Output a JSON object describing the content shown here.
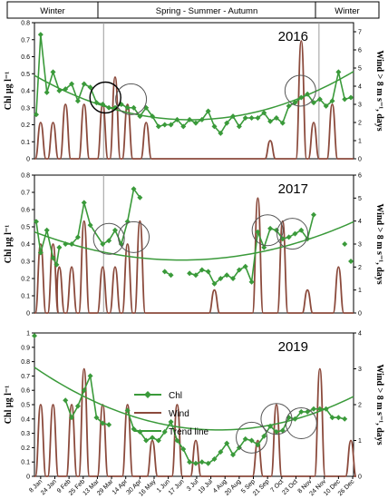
{
  "seasons": [
    "Winter",
    "Spring - Summer - Autumn",
    "Winter"
  ],
  "legend": [
    "Chl",
    "Wind",
    "Trend line"
  ],
  "colors": {
    "chl": "#3a9a3a",
    "wind": "#8b4a3c",
    "trend": "#3a9a3a",
    "divider": "#9a9a9a",
    "circle": "#555555"
  },
  "chart_data": [
    {
      "type": "line",
      "year": "2016",
      "y_left_label": "Chl µg l⁻¹",
      "y_right_label": "Wind > 8 m s⁻¹, days",
      "y_left_ticks": [
        "0",
        "0.1",
        "0.2",
        "0.3",
        "0.4",
        "0.5",
        "0.6",
        "0.7",
        "0.8"
      ],
      "y_right_ticks": [
        "0",
        "1",
        "2",
        "3",
        "4",
        "5",
        "6",
        "7"
      ],
      "ylim_left": [
        0,
        0.8
      ],
      "ylim_right": [
        0,
        7.5
      ],
      "chl": [
        [
          2,
          0.26
        ],
        [
          7,
          0.73
        ],
        [
          14,
          0.39
        ],
        [
          21,
          0.51
        ],
        [
          28,
          0.4
        ],
        [
          35,
          0.41
        ],
        [
          42,
          0.44
        ],
        [
          49,
          0.34
        ],
        [
          56,
          0.44
        ],
        [
          63,
          0.42
        ],
        [
          70,
          0.33
        ],
        [
          77,
          0.32
        ],
        [
          84,
          0.3
        ],
        [
          91,
          0.3
        ],
        [
          98,
          0.32
        ],
        [
          105,
          0.3
        ],
        [
          112,
          0.3
        ],
        [
          119,
          0.25
        ],
        [
          126,
          0.3
        ],
        [
          133,
          0.25
        ],
        [
          140,
          0.19
        ],
        [
          147,
          0.2
        ],
        [
          154,
          0.2
        ],
        [
          161,
          0.23
        ],
        [
          168,
          0.19
        ],
        [
          175,
          0.23
        ],
        [
          182,
          0.21
        ],
        [
          189,
          0.23
        ],
        [
          196,
          0.28
        ],
        [
          203,
          0.19
        ],
        [
          210,
          0.15
        ],
        [
          217,
          0.21
        ],
        [
          224,
          0.25
        ],
        [
          231,
          0.19
        ],
        [
          238,
          0.24
        ],
        [
          245,
          0.24
        ],
        [
          252,
          0.24
        ],
        [
          259,
          0.27
        ],
        [
          266,
          0.22
        ],
        [
          273,
          0.24
        ],
        [
          280,
          0.21
        ],
        [
          287,
          0.31
        ],
        [
          294,
          0.33
        ],
        [
          301,
          0.36
        ],
        [
          308,
          0.38
        ],
        [
          315,
          0.33
        ],
        [
          322,
          0.35
        ],
        [
          329,
          0.31
        ],
        [
          336,
          0.34
        ],
        [
          343,
          0.51
        ],
        [
          350,
          0.35
        ],
        [
          357,
          0.36
        ]
      ],
      "chl_gaps": [],
      "wind_peaks": [
        [
          7,
          2
        ],
        [
          21,
          2
        ],
        [
          35,
          3
        ],
        [
          56,
          3
        ],
        [
          77,
          3
        ],
        [
          91,
          4.5
        ],
        [
          105,
          3
        ],
        [
          126,
          2
        ],
        [
          266,
          1
        ],
        [
          301,
          6.5
        ],
        [
          315,
          2
        ],
        [
          336,
          3
        ]
      ],
      "trend": [
        0.49,
        -0.00296,
        8.4e-06
      ],
      "circles": [
        [
          80,
          0.36
        ],
        [
          109,
          0.35
        ],
        [
          300,
          0.4
        ]
      ],
      "dividers": [
        78,
        321
      ]
    },
    {
      "type": "line",
      "year": "2017",
      "y_left_label": "Chl µg l⁻¹",
      "y_right_label": "Wind > 8 m s⁻¹, days",
      "y_left_ticks": [
        "0",
        "0.1",
        "0.2",
        "0.3",
        "0.4",
        "0.5",
        "0.6",
        "0.7",
        "0.8"
      ],
      "y_right_ticks": [
        "0",
        "1",
        "2",
        "3",
        "4",
        "5",
        "6"
      ],
      "ylim_left": [
        0,
        0.8
      ],
      "ylim_right": [
        0,
        6
      ],
      "chl": [
        [
          2,
          0.53
        ],
        [
          7,
          0.35
        ],
        [
          14,
          0.48
        ],
        [
          21,
          0.32
        ],
        [
          25,
          0.28
        ],
        [
          28,
          0.38
        ],
        [
          35,
          0.4
        ],
        [
          42,
          0.4
        ],
        [
          49,
          0.44
        ],
        [
          56,
          0.64
        ],
        [
          63,
          0.51
        ],
        [
          77,
          0.4
        ],
        [
          84,
          0.42
        ],
        [
          91,
          0.48
        ],
        [
          98,
          0.4
        ],
        [
          105,
          0.53
        ],
        [
          112,
          0.72
        ],
        [
          119,
          0.67
        ],
        [
          147,
          0.24
        ],
        [
          154,
          0.22
        ],
        [
          175,
          0.23
        ],
        [
          182,
          0.22
        ],
        [
          189,
          0.25
        ],
        [
          196,
          0.24
        ],
        [
          203,
          0.17
        ],
        [
          210,
          0.2
        ],
        [
          217,
          0.22
        ],
        [
          224,
          0.2
        ],
        [
          231,
          0.25
        ],
        [
          238,
          0.27
        ],
        [
          245,
          0.18
        ],
        [
          252,
          0.47
        ],
        [
          259,
          0.38
        ],
        [
          266,
          0.49
        ],
        [
          273,
          0.48
        ],
        [
          280,
          0.43
        ],
        [
          287,
          0.44
        ],
        [
          294,
          0.46
        ],
        [
          301,
          0.48
        ],
        [
          308,
          0.43
        ],
        [
          315,
          0.57
        ],
        [
          350,
          0.4
        ],
        [
          357,
          0.3
        ]
      ],
      "chl_gaps": [
        [
          28,
          35
        ],
        [
          119,
          147
        ],
        [
          154,
          175
        ],
        [
          315,
          350
        ],
        [
          350,
          357
        ]
      ],
      "wind_peaks": [
        [
          7,
          3
        ],
        [
          21,
          3
        ],
        [
          28,
          2
        ],
        [
          42,
          2
        ],
        [
          56,
          4
        ],
        [
          77,
          2
        ],
        [
          91,
          2
        ],
        [
          105,
          3
        ],
        [
          119,
          4
        ],
        [
          203,
          1
        ],
        [
          252,
          5
        ],
        [
          280,
          4
        ],
        [
          308,
          1
        ],
        [
          343,
          2
        ]
      ],
      "trend": [
        0.47,
        -0.00196,
        5.9e-06
      ],
      "circles": [
        [
          84,
          0.43
        ],
        [
          112,
          0.44
        ],
        [
          263,
          0.48
        ],
        [
          291,
          0.46
        ]
      ],
      "dividers": [
        78
      ]
    },
    {
      "type": "line",
      "year": "2019",
      "y_left_label": "Chl µg l⁻¹",
      "y_right_label": "Wind > 8 m s⁻¹, days",
      "y_left_ticks": [
        "0",
        "0.1",
        "0.2",
        "0.3",
        "0.4",
        "0.5",
        "0.6",
        "0.7",
        "0.8",
        "0.9",
        "1"
      ],
      "y_right_ticks": [
        "0",
        "1",
        "2",
        "3",
        "4"
      ],
      "ylim_left": [
        0,
        1
      ],
      "ylim_right": [
        0,
        4
      ],
      "chl": [
        [
          0,
          0.98
        ],
        [
          35,
          0.53
        ],
        [
          42,
          0.41
        ],
        [
          49,
          0.49
        ],
        [
          56,
          0.6
        ],
        [
          63,
          0.7
        ],
        [
          70,
          0.41
        ],
        [
          77,
          0.37
        ],
        [
          84,
          0.36
        ],
        [
          105,
          0.46
        ],
        [
          112,
          0.33
        ],
        [
          119,
          0.31
        ],
        [
          126,
          0.25
        ],
        [
          133,
          0.27
        ],
        [
          140,
          0.25
        ],
        [
          147,
          0.31
        ],
        [
          154,
          0.38
        ],
        [
          161,
          0.25
        ],
        [
          168,
          0.19
        ],
        [
          175,
          0.1
        ],
        [
          182,
          0.09
        ],
        [
          189,
          0.1
        ],
        [
          196,
          0.09
        ],
        [
          203,
          0.12
        ],
        [
          210,
          0.17
        ],
        [
          217,
          0.23
        ],
        [
          224,
          0.15
        ],
        [
          231,
          0.2
        ],
        [
          238,
          0.26
        ],
        [
          245,
          0.25
        ],
        [
          252,
          0.22
        ],
        [
          259,
          0.28
        ],
        [
          266,
          0.35
        ],
        [
          273,
          0.31
        ],
        [
          280,
          0.32
        ],
        [
          287,
          0.41
        ],
        [
          294,
          0.4
        ],
        [
          301,
          0.45
        ],
        [
          308,
          0.45
        ],
        [
          315,
          0.47
        ],
        [
          322,
          0.47
        ],
        [
          329,
          0.47
        ],
        [
          336,
          0.41
        ],
        [
          343,
          0.41
        ],
        [
          350,
          0.4
        ]
      ],
      "chl_gaps": [
        [
          0,
          35
        ],
        [
          84,
          105
        ]
      ],
      "wind_peaks": [
        [
          7,
          2
        ],
        [
          21,
          2
        ],
        [
          42,
          2
        ],
        [
          56,
          3
        ],
        [
          77,
          2
        ],
        [
          105,
          2
        ],
        [
          133,
          1
        ],
        [
          161,
          2
        ],
        [
          182,
          1
        ],
        [
          252,
          1
        ],
        [
          273,
          2
        ],
        [
          322,
          3
        ],
        [
          357,
          1
        ]
      ],
      "trend": [
        0.76,
        -0.0042,
        1.01e-05
      ],
      "circles": [
        [
          245,
          0.27
        ],
        [
          273,
          0.4
        ],
        [
          301,
          0.37
        ]
      ],
      "dividers": []
    }
  ],
  "x_labels": [
    "8 Jan",
    "24 Jan",
    "9 Feb",
    "25 Feb",
    "13 Mar",
    "29 Mar",
    "14 Apr",
    "30 Apr",
    "16 May",
    "1 Jun",
    "17 Jun",
    "3 Jul",
    "19 Jul",
    "4 Aug",
    "20 Aug",
    "5 Sep",
    "21 Sep",
    "7 Oct",
    "23 Oct",
    "8 Nov",
    "24 Nov",
    "10 Dec",
    "26 Dec"
  ]
}
